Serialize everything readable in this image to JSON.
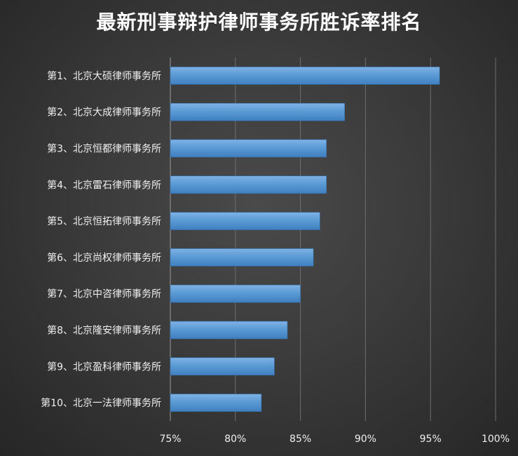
{
  "title": "最新刑事辩护律师事务所胜诉率排名",
  "chart_data": {
    "type": "bar",
    "orientation": "horizontal",
    "title": "最新刑事辩护律师事务所胜诉率排名",
    "xlabel": "",
    "ylabel": "",
    "categories": [
      "第1、北京大硕律师事务所",
      "第2、北京大成律师事务所",
      "第3、北京恒都律师事务所",
      "第4、北京雷石律师事务所",
      "第5、北京恒拓律师事务所",
      "第6、北京尚权律师事务所",
      "第7、北京中咨律师事务所",
      "第8、北京隆安律师事务所",
      "第9、北京盈科律师事务所",
      "第10、北京一法律师事务所"
    ],
    "values": [
      95.7,
      88.4,
      87.0,
      87.0,
      86.5,
      86.0,
      85.0,
      84.0,
      83.0,
      82.0
    ],
    "xlim": [
      75,
      100
    ],
    "ticks": [
      75,
      80,
      85,
      90,
      95,
      100
    ],
    "tick_labels": [
      "75%",
      "80%",
      "85%",
      "90%",
      "95%",
      "100%"
    ],
    "grid": true,
    "bar_color": "#5b9bd5"
  }
}
